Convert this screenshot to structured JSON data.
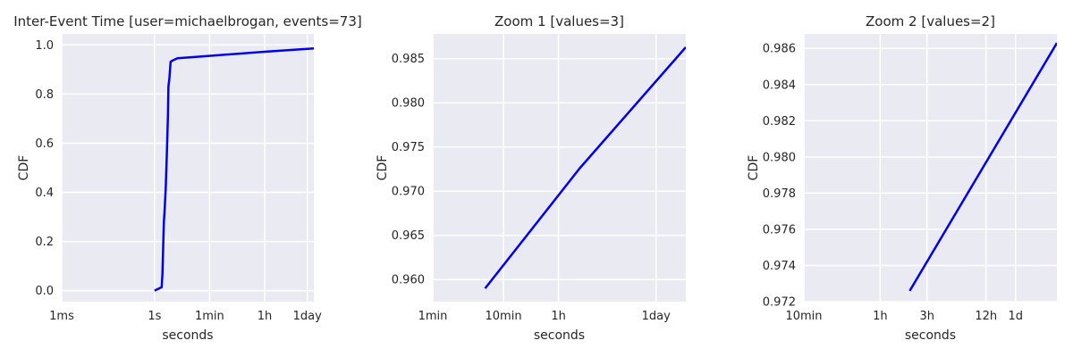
{
  "colors": {
    "background": "#eaeaf2",
    "grid": "#ffffff",
    "line": "#0000ee",
    "text": "#262626"
  },
  "chart_data": [
    {
      "type": "line",
      "title": "Inter-Event Time [user=michaelbrogan, events=73]",
      "xlabel": "seconds",
      "ylabel": "CDF",
      "x_scale": "log",
      "xlim_seconds": [
        0.001,
        140000
      ],
      "ylim": [
        -0.045,
        1.045
      ],
      "grid": true,
      "x_ticks": [
        {
          "label": "1ms",
          "value": 0.001
        },
        {
          "label": "1s",
          "value": 1
        },
        {
          "label": "1min",
          "value": 60
        },
        {
          "label": "1h",
          "value": 3600
        },
        {
          "label": "1day",
          "value": 86400
        }
      ],
      "y_ticks": [
        {
          "label": "0.0",
          "value": 0.0
        },
        {
          "label": "0.2",
          "value": 0.2
        },
        {
          "label": "0.4",
          "value": 0.4
        },
        {
          "label": "0.6",
          "value": 0.6
        },
        {
          "label": "0.8",
          "value": 0.8
        },
        {
          "label": "1.0",
          "value": 1.0
        }
      ],
      "series": [
        {
          "x_seconds": [
            1.0,
            1.7,
            1.8,
            1.9,
            2.0,
            2.1,
            2.3,
            2.5,
            2.7,
            2.8,
            3.0,
            3.3,
            3.6,
            5.5,
            30,
            4000,
            140000
          ],
          "y": [
            0.0,
            0.014,
            0.07,
            0.18,
            0.28,
            0.32,
            0.42,
            0.56,
            0.71,
            0.83,
            0.86,
            0.931,
            0.935,
            0.946,
            0.953,
            0.973,
            0.986
          ]
        }
      ]
    },
    {
      "type": "line",
      "title": "Zoom 1 [values=3]",
      "xlabel": "seconds",
      "ylabel": "CDF",
      "x_scale": "log",
      "xlim_seconds": [
        60,
        228000
      ],
      "ylim": [
        0.9575,
        0.9878
      ],
      "grid": true,
      "x_ticks": [
        {
          "label": "1min",
          "value": 60
        },
        {
          "label": "10min",
          "value": 600
        },
        {
          "label": "1h",
          "value": 3600
        },
        {
          "label": "1day",
          "value": 86400
        }
      ],
      "y_ticks": [
        {
          "label": "0.960",
          "value": 0.96
        },
        {
          "label": "0.965",
          "value": 0.965
        },
        {
          "label": "0.970",
          "value": 0.97
        },
        {
          "label": "0.975",
          "value": 0.975
        },
        {
          "label": "0.980",
          "value": 0.98
        },
        {
          "label": "0.985",
          "value": 0.985
        }
      ],
      "series": [
        {
          "x_seconds": [
            330,
            7200,
            228000
          ],
          "y": [
            0.959,
            0.9726,
            0.9863
          ]
        }
      ]
    },
    {
      "type": "line",
      "title": "Zoom 2 [values=2]",
      "xlabel": "seconds",
      "ylabel": "CDF",
      "x_scale": "log",
      "xlim_seconds": [
        600,
        228000
      ],
      "ylim": [
        0.972,
        0.9868
      ],
      "grid": true,
      "x_ticks": [
        {
          "label": "10min",
          "value": 600
        },
        {
          "label": "1h",
          "value": 3600
        },
        {
          "label": "3h",
          "value": 10800
        },
        {
          "label": "12h",
          "value": 43200
        },
        {
          "label": "1d",
          "value": 86400
        }
      ],
      "y_ticks": [
        {
          "label": "0.972",
          "value": 0.972
        },
        {
          "label": "0.974",
          "value": 0.974
        },
        {
          "label": "0.976",
          "value": 0.976
        },
        {
          "label": "0.978",
          "value": 0.978
        },
        {
          "label": "0.980",
          "value": 0.98
        },
        {
          "label": "0.982",
          "value": 0.982
        },
        {
          "label": "0.984",
          "value": 0.984
        },
        {
          "label": "0.986",
          "value": 0.986
        }
      ],
      "series": [
        {
          "x_seconds": [
            7200,
            228000
          ],
          "y": [
            0.9726,
            0.9863
          ]
        }
      ]
    }
  ]
}
